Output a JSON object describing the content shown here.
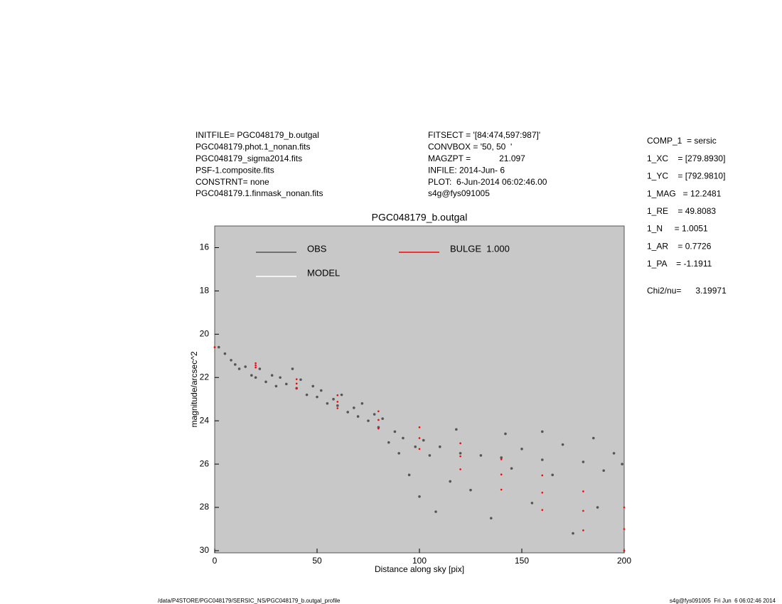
{
  "header_left": [
    "INITFILE= PGC048179_b.outgal",
    "PGC048179.phot.1_nonan.fits",
    "PGC048179_sigma2014.fits",
    "PSF-1.composite.fits",
    "CONSTRNT= none",
    "PGC048179.1.finmask_nonan.fits"
  ],
  "header_middle": [
    "FITSECT = '[84:474,597:987]'",
    "CONVBOX = '50, 50  '",
    "MAGZPT =            21.097",
    "INFILE: 2014-Jun- 6",
    "PLOT:  6-Jun-2014 06:02:46.00",
    "s4g@fys091005"
  ],
  "params": [
    "COMP_1  = sersic",
    "1_XC    = [279.8930]",
    "1_YC    = [792.9810]",
    "1_MAG   = 12.2481",
    "1_RE    = 49.8083",
    "1_N     = 1.0051",
    "1_AR    = 0.7726",
    "1_PA    = -1.1911"
  ],
  "chi2": "Chi2/nu=      3.19971",
  "footer_left": "/data/P4STORE/PGC048179/SERSIC_NS/PGC048179_b.outgal_profile",
  "footer_right": "s4g@fys091005  Fri Jun  6 06:02:46 2014",
  "chart_data": {
    "type": "scatter",
    "title": "PGC048179_b.outgal",
    "x_label": "Distance along sky [pix]",
    "y_label": "magnitude/arcsec^2",
    "xlim": [
      0,
      200
    ],
    "ylim": [
      30.1,
      15
    ],
    "xticks": [
      0,
      50,
      100,
      150,
      200
    ],
    "yticks": [
      16,
      18,
      20,
      22,
      24,
      26,
      28,
      30
    ],
    "series": [
      {
        "name": "OBS",
        "color": "#555555",
        "x": [
          2,
          5,
          8,
          10,
          12,
          15,
          18,
          20,
          22,
          25,
          28,
          30,
          32,
          35,
          38,
          40,
          42,
          45,
          48,
          50,
          52,
          55,
          58,
          60,
          62,
          65,
          68,
          70,
          72,
          75,
          78,
          80,
          82,
          85,
          88,
          90,
          92,
          95,
          98,
          100,
          102,
          105,
          108,
          110,
          115,
          120,
          125,
          130,
          135,
          140,
          145,
          150,
          155,
          160,
          165,
          170,
          175,
          180,
          185,
          190,
          195,
          199,
          142,
          160,
          187,
          118
        ],
        "values": [
          20.6,
          20.9,
          21.2,
          21.4,
          21.6,
          21.5,
          21.9,
          22.0,
          21.6,
          22.2,
          21.9,
          22.4,
          22.0,
          22.3,
          21.6,
          22.5,
          22.1,
          22.8,
          22.4,
          22.9,
          22.6,
          23.2,
          23.0,
          23.3,
          22.8,
          23.6,
          23.4,
          23.8,
          23.2,
          24.0,
          23.7,
          24.3,
          23.9,
          25.0,
          24.5,
          25.5,
          24.8,
          26.5,
          25.2,
          27.5,
          24.9,
          25.6,
          28.2,
          25.2,
          26.8,
          25.5,
          27.2,
          25.6,
          28.5,
          25.7,
          26.2,
          25.3,
          27.8,
          25.8,
          26.5,
          25.1,
          29.2,
          25.9,
          24.8,
          26.3,
          25.5,
          26.0,
          24.6,
          24.5,
          28.0,
          24.4
        ]
      },
      {
        "name": "MODEL",
        "color": "#ffffff",
        "x": [],
        "values": []
      },
      {
        "name": "BULGE  1.000",
        "color": "#ff0000",
        "x": [
          0,
          20,
          40,
          60,
          80,
          100,
          120,
          140,
          160,
          180,
          200,
          0,
          20,
          40,
          60,
          80,
          100,
          120,
          140,
          160,
          180,
          200,
          20,
          40,
          60,
          80,
          100,
          120,
          140,
          160,
          180,
          200
        ],
        "values": [
          20.6,
          21.34,
          22.08,
          22.82,
          23.56,
          24.3,
          25.04,
          25.78,
          26.52,
          27.26,
          28.0,
          20.6,
          21.44,
          22.28,
          23.12,
          23.96,
          24.8,
          25.64,
          26.48,
          27.32,
          28.16,
          29.0,
          21.54,
          22.48,
          23.42,
          24.36,
          25.3,
          26.24,
          27.18,
          28.12,
          29.06,
          30.0
        ]
      }
    ]
  }
}
